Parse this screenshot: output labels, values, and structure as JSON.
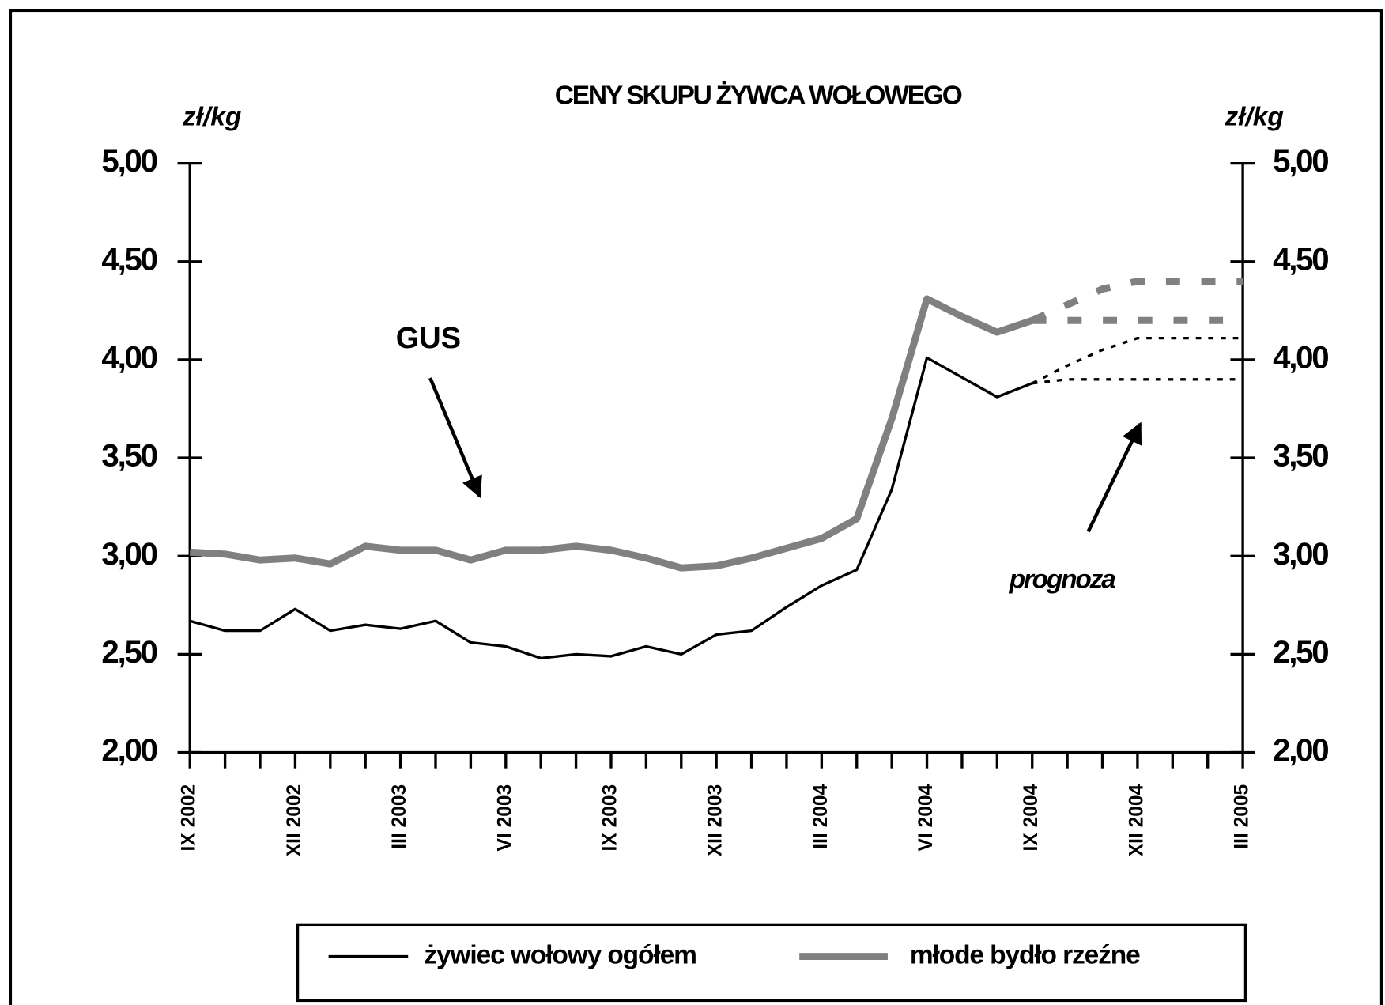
{
  "chart_data": {
    "type": "line",
    "title": "CENY SKUPU ŻYWCA WOŁOWEGO",
    "ylabel": "zł/kg",
    "y2label": "zł/kg",
    "annotations": [
      "GUS",
      "prognoza"
    ],
    "categories": [
      "IX 2002",
      null,
      null,
      "XII 2002",
      null,
      null,
      "III 2003",
      null,
      null,
      "VI 2003",
      null,
      null,
      "IX 2003",
      null,
      null,
      "XII 2003",
      null,
      null,
      "III 2004",
      null,
      null,
      "VI 2004",
      null,
      null,
      "IX 2004",
      null,
      null,
      "XII 2004",
      null,
      null,
      "III 2005"
    ],
    "ylim": [
      2,
      5
    ],
    "yticks": [
      {
        "value": 2,
        "label": "2,00"
      },
      {
        "value": 2.5,
        "label": "2,50"
      },
      {
        "value": 3,
        "label": "3,00"
      },
      {
        "value": 3.5,
        "label": "3,50"
      },
      {
        "value": 4,
        "label": "4,00"
      },
      {
        "value": 4.5,
        "label": "4,50"
      },
      {
        "value": 5,
        "label": "5,00"
      }
    ],
    "y2lim": [
      2,
      5
    ],
    "y2ticks": [
      {
        "value": 2,
        "label": "2,00"
      },
      {
        "value": 2.5,
        "label": "2,50"
      },
      {
        "value": 3,
        "label": "3,00"
      },
      {
        "value": 3.5,
        "label": "3,50"
      },
      {
        "value": 4,
        "label": "4,00"
      },
      {
        "value": 4.5,
        "label": "4,50"
      },
      {
        "value": 5,
        "label": "5,00"
      }
    ],
    "series": [
      {
        "name": "żywiec wołowy ogółem",
        "color": "#000000",
        "values": [
          2.67,
          2.62,
          2.62,
          2.73,
          2.62,
          2.65,
          2.63,
          2.67,
          2.56,
          2.54,
          2.48,
          2.5,
          2.49,
          2.54,
          2.5,
          2.6,
          2.62,
          2.74,
          2.85,
          2.93,
          3.34,
          4.01,
          3.91,
          3.81,
          3.88,
          null,
          null,
          null,
          null,
          null,
          null
        ],
        "forecast": [
          [
            null,
            null,
            null,
            null,
            null,
            null,
            null,
            null,
            null,
            null,
            null,
            null,
            null,
            null,
            null,
            null,
            null,
            null,
            null,
            null,
            null,
            null,
            null,
            null,
            3.88,
            3.97,
            4.05,
            4.11,
            4.11,
            4.11,
            4.11
          ],
          [
            null,
            null,
            null,
            null,
            null,
            null,
            null,
            null,
            null,
            null,
            null,
            null,
            null,
            null,
            null,
            null,
            null,
            null,
            null,
            null,
            null,
            null,
            null,
            null,
            3.88,
            3.9,
            3.9,
            3.9,
            3.9,
            3.9,
            3.9
          ]
        ]
      },
      {
        "name": "młode bydło rzeźne",
        "color": "#808080",
        "values": [
          3.02,
          3.01,
          2.98,
          2.99,
          2.96,
          3.05,
          3.03,
          3.03,
          2.98,
          3.03,
          3.03,
          3.05,
          3.03,
          2.99,
          2.94,
          2.95,
          2.99,
          3.04,
          3.09,
          3.19,
          3.7,
          4.31,
          4.22,
          4.14,
          4.2,
          null,
          null,
          null,
          null,
          null,
          null
        ],
        "forecast": [
          [
            null,
            null,
            null,
            null,
            null,
            null,
            null,
            null,
            null,
            null,
            null,
            null,
            null,
            null,
            null,
            null,
            null,
            null,
            null,
            null,
            null,
            null,
            null,
            null,
            4.2,
            4.28,
            4.36,
            4.4,
            4.4,
            4.4,
            4.4
          ],
          [
            null,
            null,
            null,
            null,
            null,
            null,
            null,
            null,
            null,
            null,
            null,
            null,
            null,
            null,
            null,
            null,
            null,
            null,
            null,
            null,
            null,
            null,
            null,
            null,
            4.2,
            4.2,
            4.2,
            4.2,
            4.2,
            4.2,
            4.2
          ]
        ]
      }
    ]
  }
}
